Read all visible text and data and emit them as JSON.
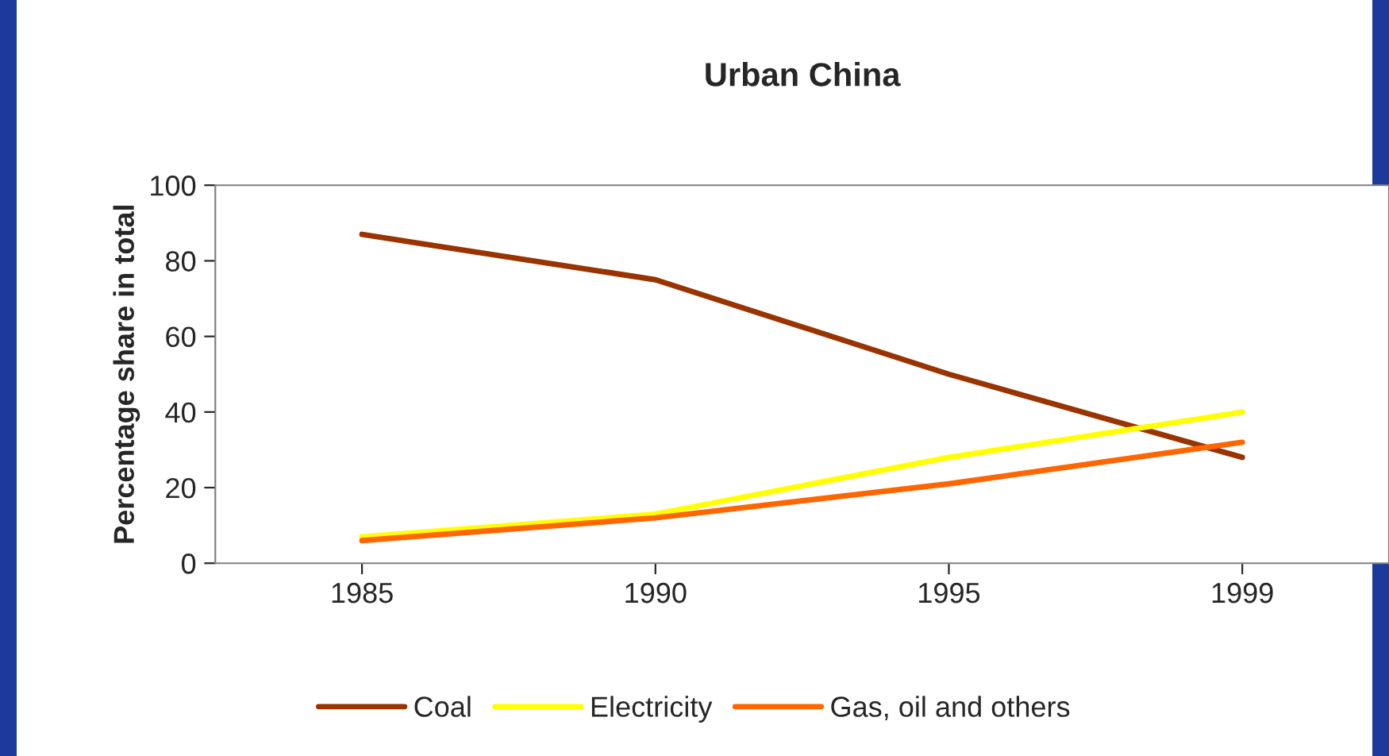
{
  "chart_data": {
    "type": "line",
    "title": "Urban China",
    "ylabel": "Percentage share in total",
    "categories": [
      "1985",
      "1990",
      "1995",
      "1999"
    ],
    "series": [
      {
        "name": "Coal",
        "color": "#993300",
        "values": [
          87,
          75,
          50,
          28
        ]
      },
      {
        "name": "Electricity",
        "color": "#ffff00",
        "values": [
          7,
          13,
          28,
          40
        ]
      },
      {
        "name": "Gas, oil and others",
        "color": "#ff6600",
        "values": [
          6,
          12,
          21,
          32
        ]
      }
    ],
    "ylim": [
      0,
      100
    ],
    "yticks": [
      0,
      20,
      40,
      60,
      80,
      100
    ],
    "grid": false,
    "legend": "bottom",
    "marker": "none",
    "line_style": "solid"
  }
}
